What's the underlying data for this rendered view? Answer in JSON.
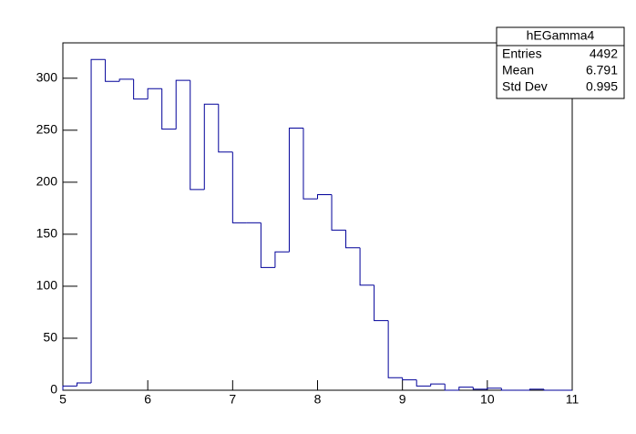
{
  "chart_data": {
    "type": "histogram",
    "title": "hEGamma4",
    "bins": [
      5,
      5.1667,
      5.3333,
      5.5,
      5.6667,
      5.8333,
      6,
      6.1667,
      6.3333,
      6.5,
      6.6667,
      6.8333,
      7,
      7.1667,
      7.3333,
      7.5,
      7.6667,
      7.8333,
      8,
      8.1667,
      8.3333,
      8.5,
      8.6667,
      8.8333,
      9,
      9.1667,
      9.3333,
      9.5,
      9.6667,
      9.8333,
      10,
      10.1667,
      10.3333,
      10.5,
      10.6667,
      10.8333,
      11
    ],
    "values": [
      4,
      7,
      318,
      297,
      299,
      280,
      290,
      251,
      298,
      193,
      275,
      229,
      161,
      161,
      118,
      133,
      252,
      184,
      188,
      154,
      137,
      101,
      67,
      12,
      10,
      4,
      6,
      0,
      3,
      1,
      2,
      0,
      0,
      1,
      0,
      0
    ],
    "color": "#000099",
    "xlim": [
      5,
      11
    ],
    "xticks": [
      5,
      6,
      7,
      8,
      9,
      10,
      11
    ],
    "ylim": [
      0,
      334
    ],
    "yticks": [
      0,
      50,
      100,
      150,
      200,
      250,
      300
    ],
    "stats": [
      {
        "label": "Entries",
        "value": 4492
      },
      {
        "label": "Mean",
        "value": 6.791
      },
      {
        "label": "Std Dev",
        "value": 0.995
      }
    ]
  }
}
